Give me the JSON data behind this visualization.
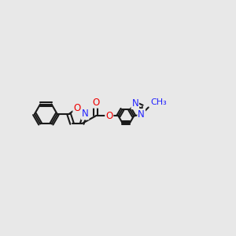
{
  "background_color": "#e8e8e8",
  "bond_color": "#1a1a1a",
  "bond_width": 1.5,
  "atom_colors": {
    "N": "#2222ff",
    "O": "#ee0000",
    "C": "#1a1a1a"
  },
  "font_size_atom": 8.5,
  "figsize": [
    3.0,
    3.0
  ],
  "dpi": 100,
  "xl": -0.5,
  "xr": 8.5,
  "yb": 0.5,
  "yt": 5.5
}
